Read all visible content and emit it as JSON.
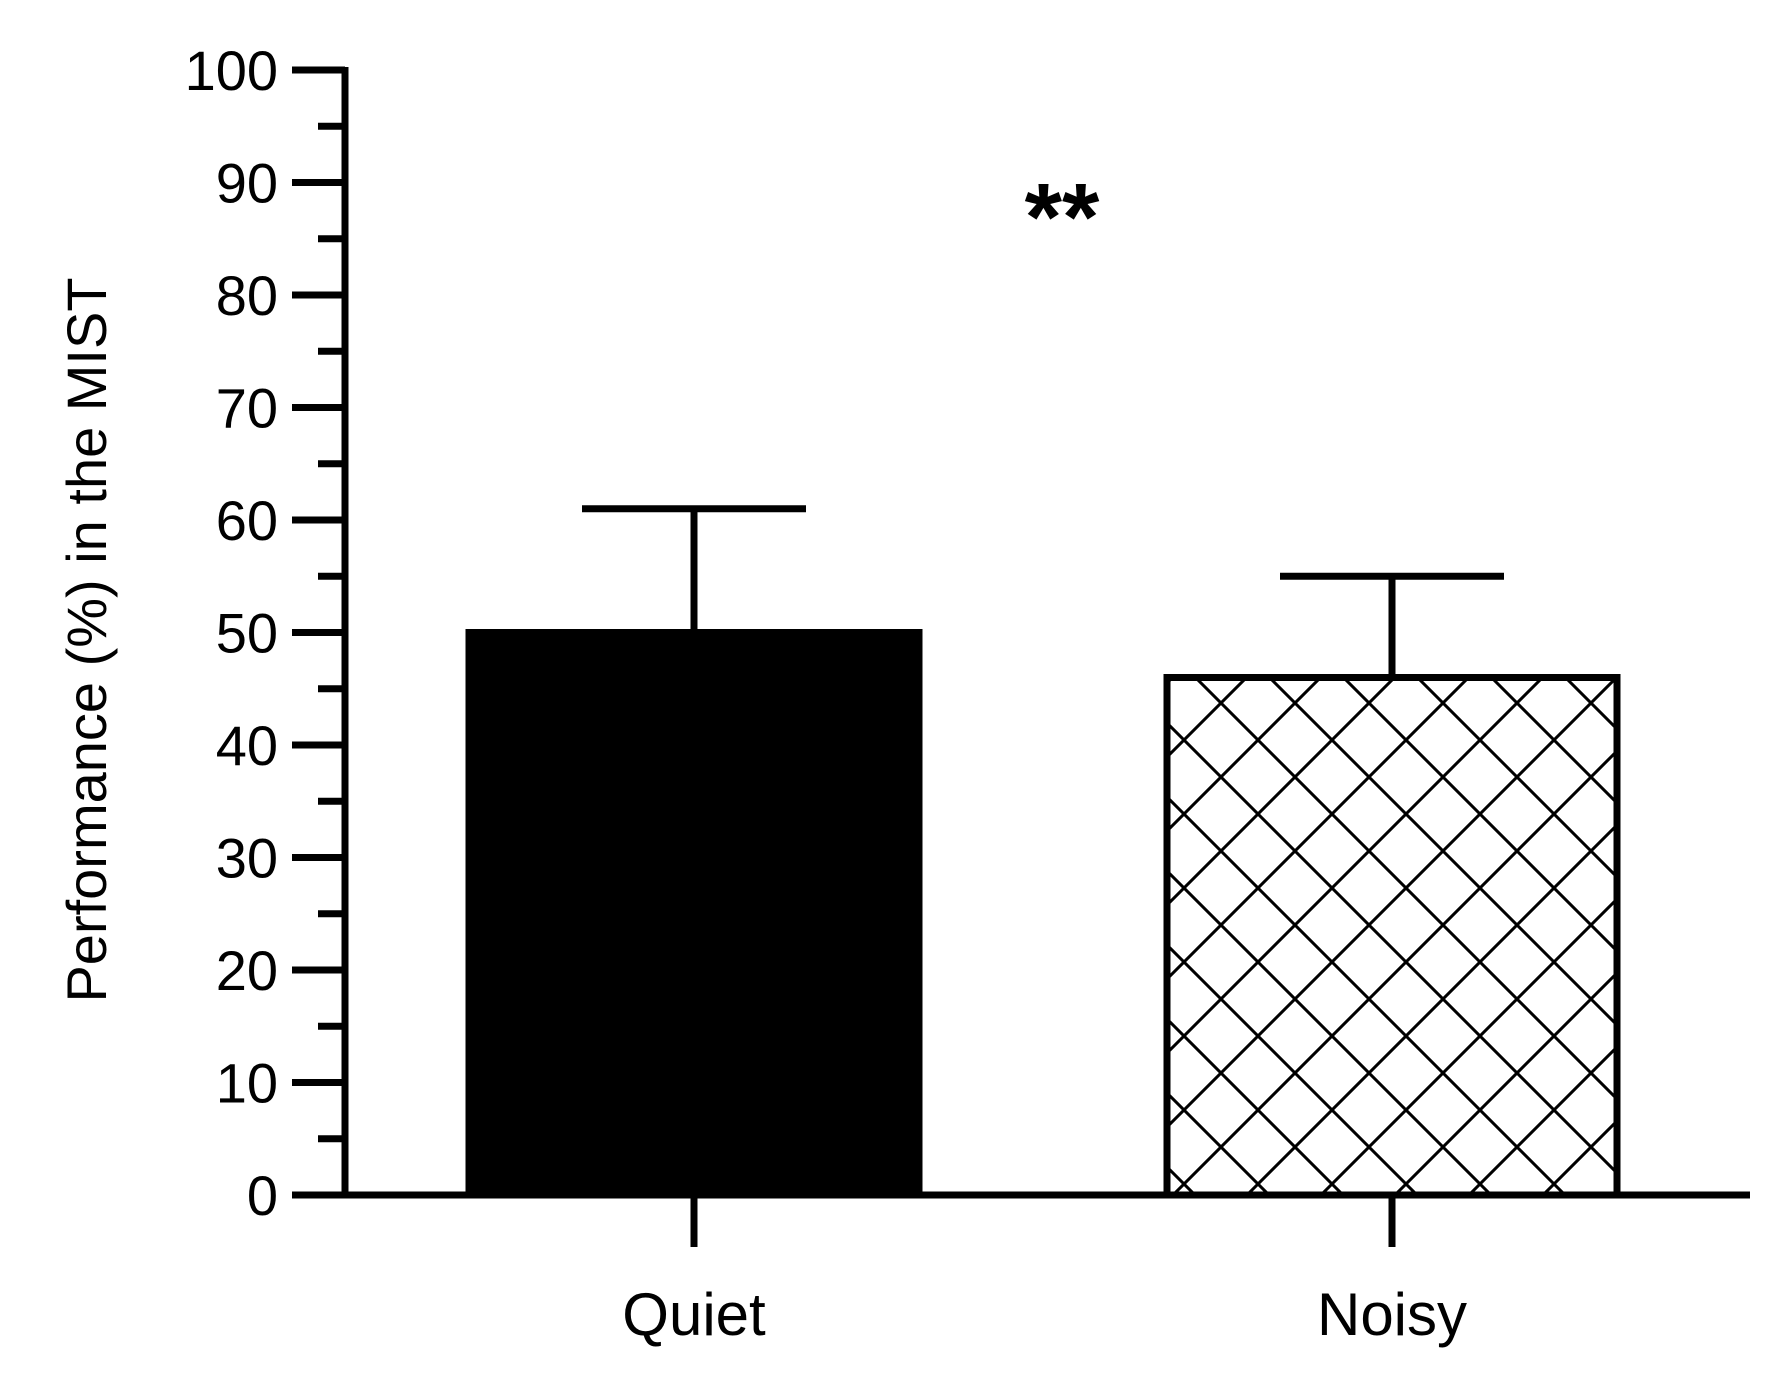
{
  "chart_data": {
    "type": "bar",
    "categories": [
      "Quiet",
      "Noisy"
    ],
    "values": [
      50,
      46
    ],
    "error_upper": [
      61,
      55
    ],
    "ylabel": "Performance (%) in the MIST",
    "xlabel": "",
    "title": "",
    "ylim": [
      0,
      100
    ],
    "yticks": [
      "0",
      "10",
      "20",
      "30",
      "40",
      "50",
      "60",
      "70",
      "80",
      "90",
      "100"
    ],
    "yticks_values": [
      0,
      10,
      20,
      30,
      40,
      50,
      60,
      70,
      80,
      90,
      100
    ],
    "bar_fills": [
      "solid-black",
      "crosshatch"
    ],
    "annotation": "**",
    "grid": false,
    "colors": {
      "ink": "#000000",
      "background": "#ffffff"
    }
  }
}
